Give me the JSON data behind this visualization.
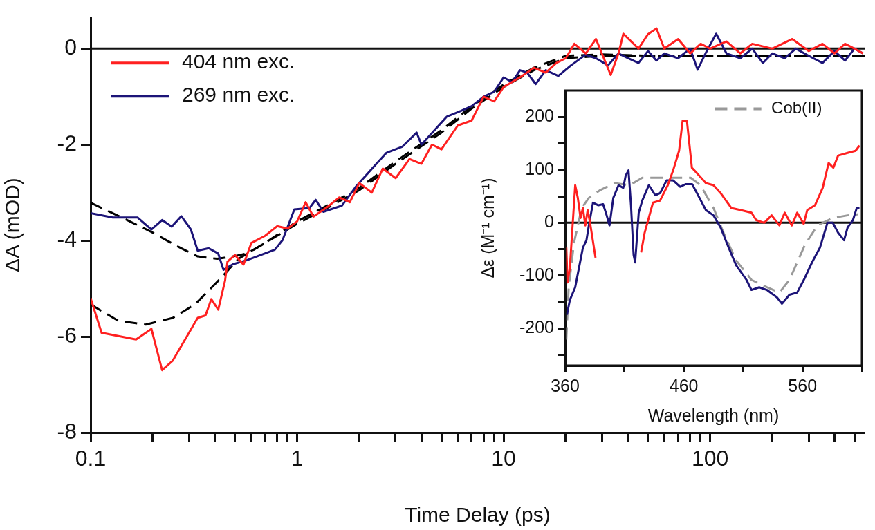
{
  "chart_data": [
    {
      "type": "line",
      "xlabel": "Time Delay (ps)",
      "ylabel": "ΔA (mOD)",
      "log": "x",
      "legend": "top left",
      "marker": "none",
      "xlim": [
        0.1,
        560
      ],
      "ylim": [
        -8,
        0.65
      ],
      "xticks": [
        0.1,
        {
          "value": 0.2,
          "label": null
        },
        {
          "value": 0.3,
          "label": null
        },
        {
          "value": 0.4,
          "label": null
        },
        {
          "value": 0.5,
          "label": null
        },
        {
          "value": 0.6,
          "label": null
        },
        {
          "value": 0.7,
          "label": null
        },
        {
          "value": 0.8,
          "label": null
        },
        {
          "value": 0.9,
          "label": null
        },
        1,
        {
          "value": 2,
          "label": null
        },
        {
          "value": 3,
          "label": null
        },
        {
          "value": 4,
          "label": null
        },
        {
          "value": 5,
          "label": null
        },
        {
          "value": 6,
          "label": null
        },
        {
          "value": 7,
          "label": null
        },
        {
          "value": 8,
          "label": null
        },
        {
          "value": 9,
          "label": null
        },
        10,
        {
          "value": 20,
          "label": null
        },
        {
          "value": 30,
          "label": null
        },
        {
          "value": 40,
          "label": null
        },
        {
          "value": 50,
          "label": null
        },
        {
          "value": 60,
          "label": null
        },
        {
          "value": 70,
          "label": null
        },
        {
          "value": 80,
          "label": null
        },
        {
          "value": 90,
          "label": null
        },
        100,
        {
          "value": 200,
          "label": null
        },
        {
          "value": 300,
          "label": null
        },
        {
          "value": 400,
          "label": null
        },
        {
          "value": 500,
          "label": null
        }
      ],
      "yticks": [
        -8,
        -6,
        -4,
        -2,
        0
      ],
      "ref_lines": [
        {
          "axis": "y",
          "value": 0
        }
      ],
      "series": [
        {
          "name": "404 nm exc.",
          "color": "#ff2020",
          "x": [
            0.1,
            0.113,
            0.166,
            0.197,
            0.222,
            0.25,
            0.33,
            0.36,
            0.384,
            0.415,
            0.448,
            0.46,
            0.5,
            0.55,
            0.6,
            0.7,
            0.8,
            0.9,
            1.0,
            1.1,
            1.2,
            1.4,
            1.6,
            1.8,
            2.0,
            2.3,
            2.6,
            3.0,
            3.5,
            4.0,
            4.5,
            5.0,
            6.0,
            7.0,
            8.0,
            9.0,
            10,
            12,
            14,
            16,
            18,
            20,
            22,
            25,
            28,
            33,
            36,
            38,
            45,
            50,
            55,
            60,
            70,
            80,
            90,
            100,
            120,
            140,
            160,
            200,
            250,
            300,
            350,
            400,
            450,
            500,
            550
          ],
          "values": [
            -5.2,
            -5.92,
            -6.06,
            -5.84,
            -6.7,
            -6.5,
            -5.61,
            -5.56,
            -5.22,
            -5.44,
            -4.83,
            -4.44,
            -4.3,
            -4.5,
            -4.05,
            -3.9,
            -3.7,
            -3.75,
            -3.6,
            -3.2,
            -3.5,
            -3.3,
            -3.1,
            -3.2,
            -2.8,
            -3.0,
            -2.5,
            -2.7,
            -2.3,
            -2.4,
            -2.0,
            -2.1,
            -1.6,
            -1.5,
            -1.0,
            -1.1,
            -0.8,
            -0.6,
            -0.4,
            -0.5,
            -0.3,
            -0.2,
            0.1,
            -0.1,
            0.2,
            -0.55,
            -0.1,
            0.31,
            0.0,
            0.3,
            0.42,
            0.0,
            0.2,
            -0.1,
            0.1,
            0.0,
            0.15,
            -0.1,
            0.1,
            0.0,
            0.2,
            -0.05,
            0.1,
            -0.1,
            0.1,
            0.0,
            -0.1
          ]
        },
        {
          "name": "269 nm exc.",
          "color": "#1c1478",
          "x": [
            0.1,
            0.128,
            0.169,
            0.197,
            0.222,
            0.247,
            0.275,
            0.306,
            0.33,
            0.373,
            0.415,
            0.44,
            0.49,
            0.57,
            0.78,
            0.85,
            0.97,
            1.15,
            1.23,
            1.34,
            1.65,
            1.93,
            2.33,
            2.71,
            3.24,
            3.79,
            4.0,
            5.3,
            6.2,
            7,
            8,
            9,
            10,
            11,
            12,
            13,
            14.3,
            16,
            18.4,
            21.2,
            24.9,
            28,
            32,
            36,
            40,
            45,
            50,
            55,
            60,
            70,
            80,
            87,
            95,
            107,
            120,
            140,
            160,
            180,
            200,
            230,
            260,
            300,
            350,
            400,
            450,
            500,
            550
          ],
          "values": [
            -3.43,
            -3.52,
            -3.52,
            -3.77,
            -3.57,
            -3.71,
            -3.49,
            -3.77,
            -4.21,
            -4.16,
            -4.27,
            -4.61,
            -4.49,
            -4.41,
            -4.19,
            -3.99,
            -3.35,
            -3.32,
            -3.15,
            -3.4,
            -3.27,
            -2.87,
            -2.48,
            -2.17,
            -2.04,
            -1.75,
            -2.0,
            -1.42,
            -1.3,
            -1.2,
            -1.0,
            -0.9,
            -0.6,
            -0.7,
            -0.45,
            -0.5,
            -0.74,
            -0.45,
            -0.57,
            -0.35,
            -0.13,
            -0.2,
            -0.35,
            -0.1,
            -0.2,
            -0.3,
            -0.05,
            -0.25,
            -0.1,
            -0.2,
            0.0,
            -0.44,
            -0.1,
            0.31,
            -0.1,
            -0.2,
            0.0,
            -0.3,
            -0.1,
            -0.2,
            0.0,
            -0.15,
            -0.3,
            -0.05,
            -0.25,
            0.0,
            -0.1
          ]
        },
        {
          "type": "line",
          "color": "#000000",
          "line_style": "dashed",
          "x": [
            0.1,
            0.145,
            0.197,
            0.266,
            0.33,
            0.41,
            0.49,
            0.57,
            0.7,
            1,
            1.5,
            2,
            3,
            5,
            7,
            10,
            14,
            20,
            30,
            50,
            100,
            200,
            560
          ],
          "values": [
            -3.21,
            -3.54,
            -3.82,
            -4.13,
            -4.33,
            -4.38,
            -4.33,
            -4.27,
            -4.05,
            -3.6,
            -3.2,
            -2.9,
            -2.35,
            -1.7,
            -1.2,
            -0.75,
            -0.4,
            -0.15,
            -0.12,
            -0.15,
            -0.15,
            -0.15,
            -0.15
          ]
        },
        {
          "type": "line",
          "color": "#000000",
          "line_style": "dashed",
          "x": [
            0.1,
            0.136,
            0.185,
            0.25,
            0.32,
            0.43,
            0.52,
            0.7,
            1,
            1.5,
            2,
            3,
            5,
            7,
            10,
            14,
            20,
            30,
            50,
            100,
            200,
            560
          ],
          "values": [
            -5.33,
            -5.67,
            -5.75,
            -5.61,
            -5.33,
            -4.77,
            -4.38,
            -4.05,
            -3.65,
            -3.25,
            -2.95,
            -2.4,
            -1.75,
            -1.25,
            -0.8,
            -0.45,
            -0.2,
            -0.15,
            -0.15,
            -0.15,
            -0.15,
            -0.15
          ]
        }
      ]
    },
    {
      "type": "line",
      "xlabel": "Wavelength (nm)",
      "ylabel": "Δε (M⁻¹ cm⁻¹)",
      "legend": "top right",
      "marker": "none",
      "xlim": [
        360,
        610
      ],
      "ylim": [
        -270,
        250
      ],
      "xticks": [
        360,
        {
          "value": 410,
          "label": null
        },
        460,
        {
          "value": 510,
          "label": null
        },
        560,
        {
          "value": 610,
          "label": null
        }
      ],
      "yticks": [
        {
          "value": -250,
          "label": null
        },
        -200,
        {
          "value": -150,
          "label": null
        },
        -100,
        {
          "value": -50,
          "label": null
        },
        0,
        {
          "value": 50,
          "label": null
        },
        100,
        {
          "value": 150,
          "label": null
        },
        200
      ],
      "ref_lines": [
        {
          "axis": "y",
          "value": 0
        }
      ],
      "series": [
        {
          "color": "#ff2020",
          "x": [
            361,
            362,
            364,
            368.5,
            370.7,
            373,
            375,
            377,
            379,
            381,
            385.6
          ],
          "values": [
            -47,
            -113,
            -85,
            71,
            47,
            9,
            28,
            -5,
            24,
            0,
            -66
          ]
        },
        {
          "color": "#ff2020",
          "x": [
            424,
            427,
            434,
            440,
            446.5,
            451,
            456,
            459,
            462.6,
            466.8,
            471,
            478.6,
            485,
            491,
            500,
            508,
            517,
            521,
            527.7,
            534,
            540.5,
            545,
            551,
            555.5,
            561,
            564,
            570.5,
            577,
            582,
            586,
            590,
            598,
            604.7,
            608
          ],
          "values": [
            -56,
            -19,
            38,
            42,
            71,
            99,
            136,
            193,
            193,
            104,
            94,
            75,
            71,
            56,
            28,
            24,
            19,
            5,
            0,
            14,
            -5,
            19,
            -5,
            19,
            -2,
            24,
            33,
            66,
            113,
            104,
            127,
            132,
            136,
            146
          ]
        },
        {
          "color": "#1c1478",
          "x": [
            361.5,
            364,
            368.5,
            371.7,
            375,
            378,
            380,
            383.5,
            388,
            392,
            395,
            397.4,
            400.6,
            405,
            409,
            411,
            413.4,
            415.5,
            417.7,
            419,
            422,
            425,
            430.5,
            436,
            440,
            445.5,
            451,
            457,
            461.5,
            467,
            472,
            478.6,
            485,
            491,
            497.8,
            504,
            512.8,
            517,
            523.5,
            530,
            538.4,
            542.7,
            549,
            555.5,
            562,
            568,
            574.7,
            581,
            585.5,
            590,
            595,
            598,
            602.5,
            605.7,
            608
          ],
          "values": [
            -174,
            -146,
            -122,
            -85,
            -47,
            -33,
            -5,
            38,
            33,
            35,
            14,
            -5,
            47,
            71,
            66,
            89,
            99,
            33,
            -61,
            -75,
            19,
            42,
            71,
            52,
            56,
            80,
            80,
            68,
            73,
            73,
            52,
            24,
            14,
            -9,
            -47,
            -80,
            -108,
            -127,
            -122,
            -127,
            -141,
            -153,
            -136,
            -132,
            -104,
            -75,
            -47,
            0,
            0,
            -19,
            -33,
            -9,
            5,
            28,
            28
          ]
        },
        {
          "name": "Cob(II)",
          "color": "#999999",
          "line_style": "dashed",
          "x": [
            361,
            363,
            367.5,
            374,
            380,
            389,
            401.7,
            414.5,
            425,
            440,
            457,
            465.8,
            474,
            485,
            493.5,
            504,
            517,
            530,
            540.5,
            549,
            562,
            572.6,
            585.5,
            598,
            607
          ],
          "values": [
            -221,
            -122,
            -38,
            28,
            47,
            61,
            75,
            71,
            85,
            85,
            85,
            85,
            71,
            28,
            -19,
            -71,
            -108,
            -122,
            -132,
            -108,
            -42,
            -5,
            9,
            14,
            16
          ]
        }
      ]
    }
  ]
}
